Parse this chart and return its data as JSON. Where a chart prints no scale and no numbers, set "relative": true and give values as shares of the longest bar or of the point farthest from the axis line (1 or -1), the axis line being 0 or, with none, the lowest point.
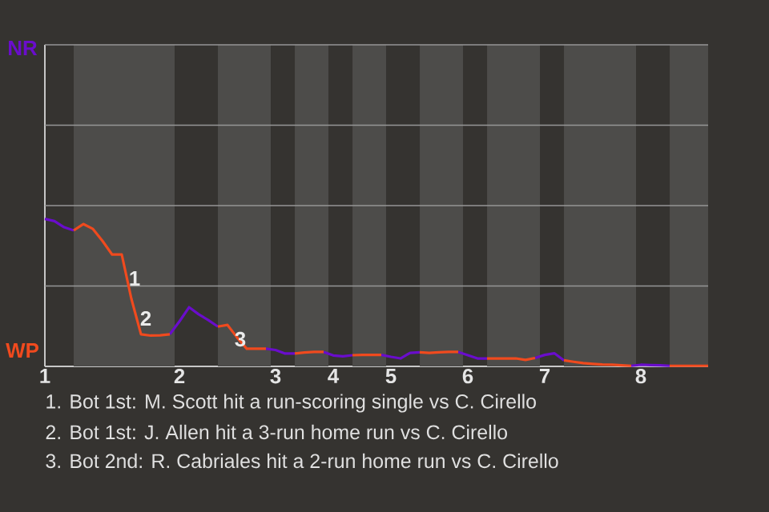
{
  "chart_data": {
    "type": "line",
    "relative": true,
    "categories": [
      "1",
      null,
      null,
      null,
      null,
      null,
      null,
      null,
      null,
      null,
      null,
      null,
      null,
      null,
      "2",
      null,
      null,
      null,
      null,
      null,
      null,
      null,
      null,
      null,
      "3",
      null,
      null,
      null,
      null,
      null,
      "4",
      null,
      null,
      null,
      null,
      null,
      "5",
      null,
      null,
      null,
      null,
      null,
      null,
      null,
      "6",
      null,
      null,
      null,
      null,
      null,
      null,
      null,
      "7",
      null,
      null,
      null,
      null,
      null,
      null,
      null,
      null,
      null,
      "8",
      null,
      null,
      null,
      null,
      null,
      null,
      null
    ],
    "series": [
      {
        "color": "#6a0dcc",
        "values": [
          1,
          0.985,
          0.943,
          0.922,
          null,
          null,
          null,
          null,
          null,
          null,
          null,
          null,
          null,
          0.218,
          0.305,
          0.401,
          0.353,
          0.314,
          0.27,
          null,
          null,
          null,
          null,
          0.12,
          0.111,
          0.087,
          0.087,
          null,
          null,
          0.098,
          0.074,
          0.068,
          0.076,
          null,
          null,
          0.078,
          0.065,
          0.054,
          0.092,
          0.096,
          null,
          null,
          null,
          0.098,
          0.076,
          0.054,
          0.054,
          null,
          null,
          null,
          null,
          0.057,
          0.078,
          0.089,
          0.041,
          null,
          null,
          null,
          null,
          null,
          null,
          0.004,
          0.011,
          0.009,
          0.007,
          0.004,
          null,
          null,
          null,
          null
        ]
      },
      {
        "color": "#f04a1e",
        "values": [
          null,
          null,
          null,
          0.922,
          0.965,
          0.932,
          0.85,
          0.758,
          0.758,
          0.458,
          0.218,
          0.209,
          0.211,
          0.218,
          null,
          null,
          null,
          null,
          0.27,
          0.281,
          0.196,
          0.12,
          0.12,
          0.12,
          null,
          null,
          0.087,
          0.094,
          0.098,
          0.098,
          null,
          null,
          0.076,
          0.078,
          0.078,
          0.078,
          null,
          null,
          null,
          0.096,
          0.092,
          0.096,
          0.098,
          0.098,
          null,
          null,
          0.054,
          0.054,
          0.054,
          0.054,
          0.044,
          0.057,
          null,
          null,
          0.041,
          0.031,
          0.022,
          0.017,
          0.013,
          0.011,
          0.007,
          0.004,
          null,
          null,
          null,
          0.004,
          0.004,
          0.004,
          0.004,
          0.004
        ]
      }
    ],
    "ref_lines": [
      {
        "axis": "y",
        "value": 0.545
      },
      {
        "axis": "y",
        "value": 1.09
      },
      {
        "axis": "y",
        "value": 1.635
      },
      {
        "axis": "y",
        "value": 2.18
      }
    ],
    "annotations": [
      "NR",
      "WP",
      "1",
      "2",
      "3",
      "1. Bot 1st: M. Scott hit a run-scoring single vs C. Cirello",
      "2. Bot 1st: J. Allen hit a 3-run home run vs C. Cirello",
      "3. Bot 2nd: R. Cabriales hit a 2-run home run vs C. Cirello"
    ]
  }
}
